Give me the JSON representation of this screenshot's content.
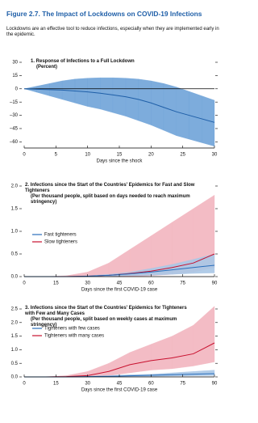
{
  "figure": {
    "title": "Figure 2.7. The Impact of Lockdowns on COVID-19 Infections",
    "subtitle": "Lockdowns are an effective tool to reduce infections, especially when they are implemented early in the epidemic."
  },
  "chart_data": [
    {
      "type": "line",
      "title": "1. Response of Infections to a Full Lockdown",
      "subtitle": "(Percent)",
      "xlabel": "Days since the shock",
      "x": [
        0,
        2,
        4,
        6,
        8,
        10,
        12,
        14,
        16,
        18,
        20,
        22,
        24,
        26,
        28,
        30
      ],
      "xlim": [
        0,
        30
      ],
      "xticks": [
        0,
        5,
        10,
        15,
        20,
        25,
        30
      ],
      "ylim": [
        -67,
        30
      ],
      "yticks": [
        30,
        15,
        0,
        {
          "value": -15,
          "label": "–15"
        },
        {
          "value": -30,
          "label": "–30"
        },
        {
          "value": -45,
          "label": "–45"
        },
        {
          "value": -60,
          "label": "–60"
        }
      ],
      "series": [
        {
          "color": "#1f5fa8",
          "band_color": "#6fa3d8",
          "values": [
            0,
            -0.5,
            -1,
            -1.5,
            -2.5,
            -3.5,
            -5,
            -7,
            -9,
            -12,
            -16,
            -21,
            -26,
            -30,
            -34,
            -38
          ],
          "upper": [
            0,
            3,
            6,
            9,
            11,
            12,
            12.5,
            12.5,
            12,
            11,
            9,
            6,
            2,
            -3,
            -8,
            -13
          ],
          "lower": [
            0,
            -4,
            -8,
            -12,
            -16,
            -20,
            -23,
            -27,
            -31,
            -36,
            -41,
            -47,
            -53,
            -57,
            -61,
            -65
          ]
        }
      ]
    },
    {
      "type": "line",
      "title": "2. Infections since the Start of the Countries' Epidemics for Fast and Slow Tighteners",
      "subtitle": "(Per thousand people, split based on days needed to reach maximum stringency)",
      "xlabel": "Days since the first COVID-19 case",
      "x": [
        0,
        10,
        20,
        30,
        40,
        50,
        60,
        70,
        80,
        90
      ],
      "xlim": [
        0,
        90
      ],
      "xticks": [
        0,
        15,
        30,
        45,
        60,
        75,
        90
      ],
      "ylim": [
        0,
        2.0
      ],
      "yticks": [
        {
          "value": 0,
          "label": "0.0"
        },
        0.5,
        {
          "value": 1,
          "label": "1.0"
        },
        1.5,
        {
          "value": 2,
          "label": "2.0"
        }
      ],
      "series": [
        {
          "name": "Slow tighteners",
          "color": "#c8102e",
          "band_color": "#f2b5bf",
          "values": [
            0,
            0,
            0,
            0.01,
            0.03,
            0.07,
            0.12,
            0.2,
            0.3,
            0.5
          ],
          "upper": [
            0,
            0,
            0.02,
            0.1,
            0.3,
            0.6,
            0.9,
            1.2,
            1.5,
            1.8
          ],
          "lower": [
            0,
            0,
            0,
            0,
            0,
            0,
            0.02,
            0.05,
            0.1,
            0.2
          ]
        },
        {
          "name": "Fast tighteners",
          "color": "#2a6ebb",
          "band_color": "#a9c6e6",
          "values": [
            0,
            0,
            0,
            0.01,
            0.03,
            0.06,
            0.1,
            0.15,
            0.2,
            0.25
          ],
          "upper": [
            0,
            0,
            0,
            0.02,
            0.05,
            0.1,
            0.18,
            0.27,
            0.38,
            0.5
          ],
          "lower": [
            0,
            0,
            0,
            0,
            0.01,
            0.02,
            0.03,
            0.05,
            0.07,
            0.08
          ]
        }
      ]
    },
    {
      "type": "line",
      "title": "3. Infections since the Start of the Countries' Epidemics for Tighteners with Few and Many Cases",
      "subtitle": "(Per thousand people, split based on weekly cases at maximum stringency)",
      "xlabel": "Days since the first COVID-19 case",
      "x": [
        0,
        10,
        20,
        30,
        40,
        50,
        60,
        70,
        80,
        90
      ],
      "xlim": [
        0,
        90
      ],
      "xticks": [
        0,
        15,
        30,
        45,
        60,
        75,
        90
      ],
      "ylim": [
        0,
        2.5
      ],
      "yticks": [
        {
          "value": 0,
          "label": "0.0"
        },
        0.5,
        {
          "value": 1,
          "label": "1.0"
        },
        1.5,
        {
          "value": 2,
          "label": "2.0"
        },
        2.5
      ],
      "series": [
        {
          "name": "Tighteners with many cases",
          "color": "#c8102e",
          "band_color": "#f2b5bf",
          "values": [
            0,
            0,
            0.01,
            0.05,
            0.2,
            0.45,
            0.6,
            0.7,
            0.85,
            1.25
          ],
          "upper": [
            0,
            0,
            0.05,
            0.2,
            0.5,
            0.9,
            1.2,
            1.5,
            1.9,
            2.6
          ],
          "lower": [
            0,
            0,
            0,
            0.01,
            0.05,
            0.15,
            0.25,
            0.3,
            0.4,
            0.55
          ]
        },
        {
          "name": "Tighteners with few cases",
          "color": "#2a6ebb",
          "band_color": "#a9c6e6",
          "values": [
            0,
            0,
            0,
            0.01,
            0.02,
            0.04,
            0.06,
            0.08,
            0.1,
            0.12
          ],
          "upper": [
            0,
            0,
            0.01,
            0.03,
            0.05,
            0.08,
            0.1,
            0.15,
            0.2,
            0.25
          ],
          "lower": [
            0,
            0,
            0,
            0,
            0,
            0.01,
            0.02,
            0.03,
            0.04,
            0.05
          ]
        }
      ]
    }
  ]
}
